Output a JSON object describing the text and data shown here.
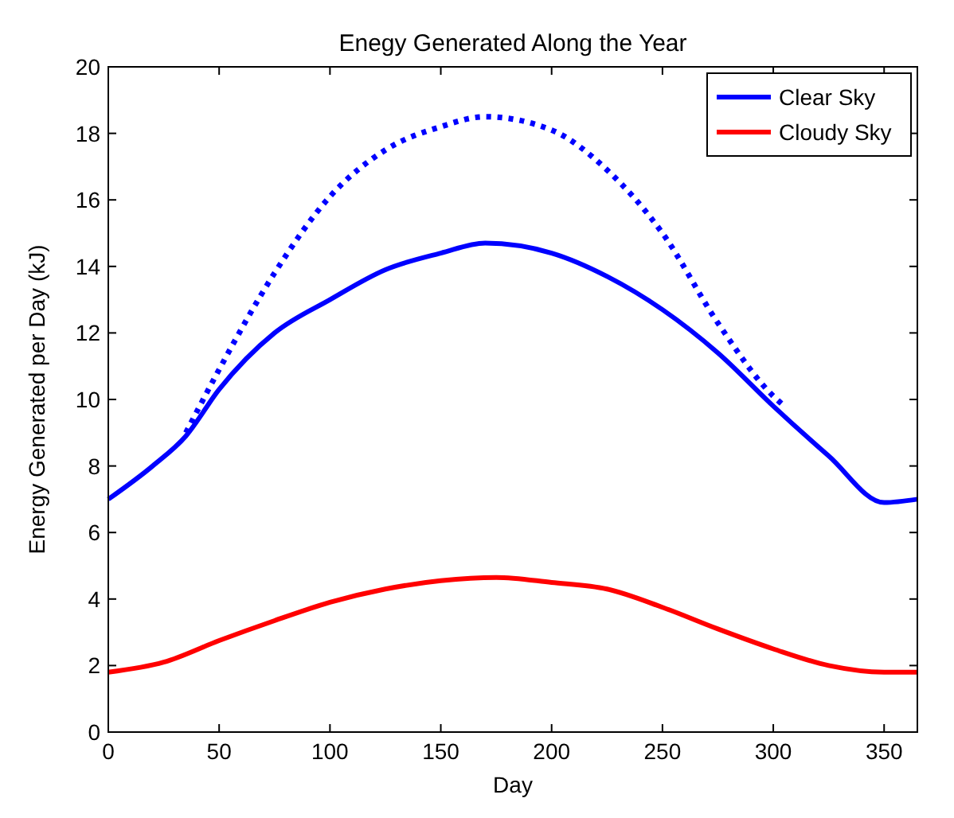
{
  "chart_data": {
    "type": "line",
    "title": "Enegy Generated Along the Year",
    "xlabel": "Day",
    "ylabel": "Energy Generated per Day (kJ)",
    "xlim": [
      0,
      365
    ],
    "xticks": [
      0,
      50,
      100,
      150,
      200,
      250,
      300,
      350
    ],
    "ylim": [
      0,
      20
    ],
    "yticks": [
      0,
      2,
      4,
      6,
      8,
      10,
      12,
      14,
      16,
      18,
      20
    ],
    "grid": false,
    "legend": "top right",
    "series": [
      {
        "name": "Clear Sky",
        "color": "#0000ff",
        "x": [
          0,
          20,
          35,
          50,
          75,
          100,
          125,
          150,
          170,
          200,
          225,
          250,
          275,
          300,
          325,
          350,
          365
        ],
        "values": [
          7.0,
          8.0,
          8.9,
          10.3,
          12.0,
          13.0,
          13.9,
          14.4,
          14.7,
          14.4,
          13.7,
          12.7,
          11.4,
          9.8,
          8.3,
          6.9,
          7.0
        ]
      },
      {
        "name": "Cloudy Sky",
        "color": "#ff0000",
        "x": [
          0,
          25,
          50,
          75,
          100,
          125,
          150,
          175,
          200,
          225,
          250,
          275,
          300,
          325,
          350,
          365
        ],
        "values": [
          1.8,
          2.1,
          2.75,
          3.35,
          3.9,
          4.3,
          4.55,
          4.65,
          4.5,
          4.3,
          3.75,
          3.1,
          2.5,
          2.0,
          1.8,
          1.8
        ]
      },
      {
        "color": "#0000ff",
        "line_style": "dotted",
        "x": [
          35,
          50,
          75,
          100,
          125,
          150,
          170,
          200,
          225,
          250,
          275,
          300,
          305
        ],
        "values": [
          9.0,
          10.9,
          13.8,
          16.1,
          17.5,
          18.2,
          18.5,
          18.1,
          16.9,
          15.0,
          12.3,
          10.1,
          9.8
        ]
      }
    ]
  }
}
